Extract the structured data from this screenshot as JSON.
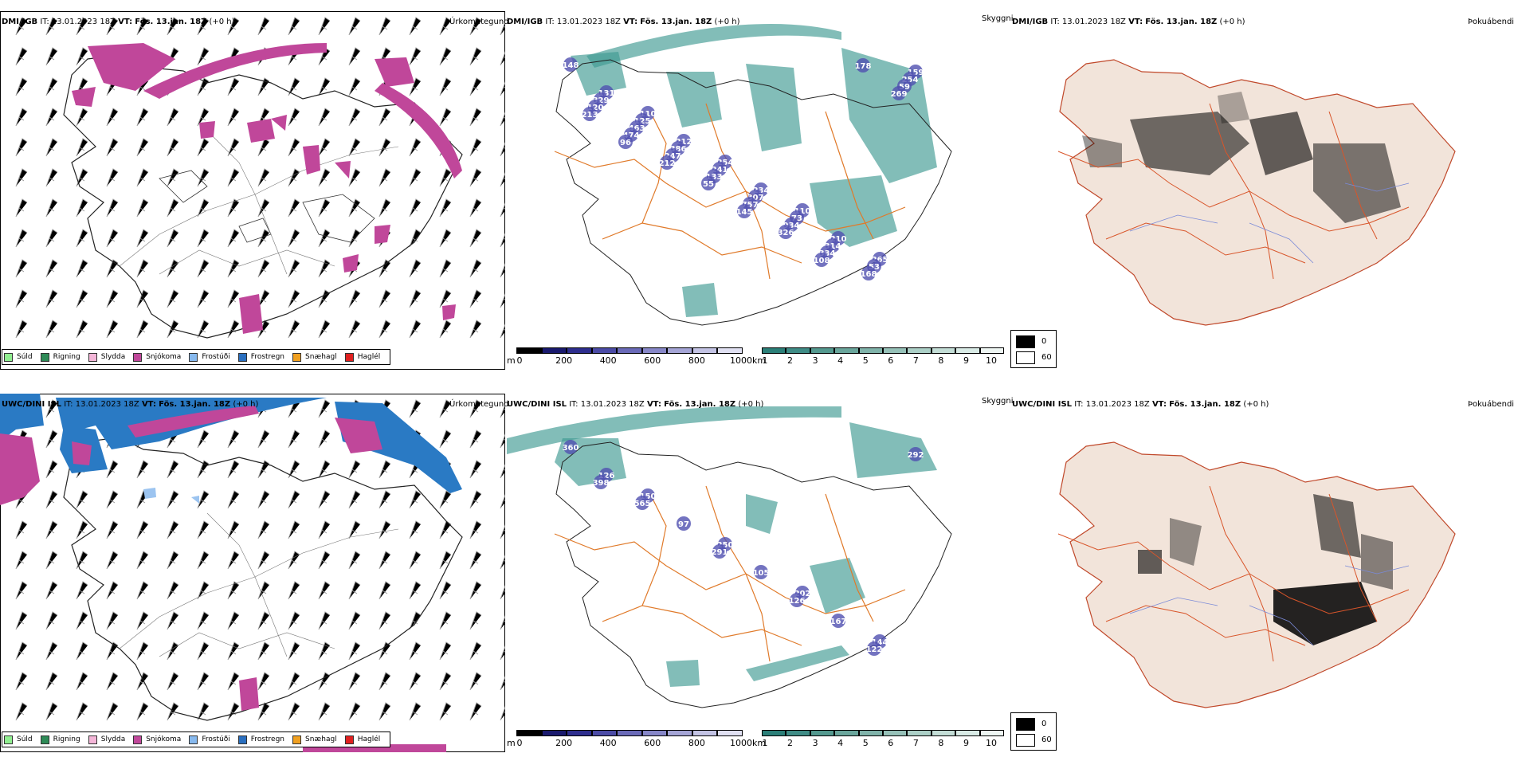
{
  "rows": [
    {
      "model": "DMI/IGB",
      "it_label": "IT:",
      "it_value": "13.01.2023 18Z",
      "vt_label": "VT:",
      "vt_value": "Fös. 13.jan. 18Z",
      "offset": "(+0 h)",
      "cloud_values": [
        "148",
        "110",
        "254",
        "110",
        "265",
        "131",
        "212",
        "234",
        "210",
        "159",
        "125",
        "241",
        "73",
        "53",
        "329",
        "386",
        "307",
        "314",
        "254",
        "463",
        "133",
        "934",
        "168",
        "120",
        "247",
        "757",
        "334",
        "59",
        "474",
        "55",
        "326",
        "178",
        "213",
        "212",
        "145",
        "108",
        "269",
        "96"
      ]
    },
    {
      "model": "UWC/DINI ISL",
      "it_label": "IT:",
      "it_value": "13.01.2023 18Z",
      "vt_label": "VT:",
      "vt_value": "Fös. 13.jan. 18Z",
      "offset": "(+0 h)",
      "cloud_values": [
        "360",
        "150",
        "250",
        "202",
        "144",
        "126",
        "97",
        "105",
        "167",
        "292",
        "565",
        "291",
        "126",
        "122",
        "398"
      ]
    }
  ],
  "panels": {
    "precip_title": "Úrkomutegund",
    "vis_title": "Skyggni",
    "fog_title": "Þokuábendi"
  },
  "precip_legend": [
    {
      "label": "Súld",
      "color": "#90ee90"
    },
    {
      "label": "Rigning",
      "color": "#2e8b57"
    },
    {
      "label": "Slydda",
      "color": "#f4b6d8"
    },
    {
      "label": "Snjókoma",
      "color": "#c0479a"
    },
    {
      "label": "Frostúði",
      "color": "#87b9ee"
    },
    {
      "label": "Frostregn",
      "color": "#2a6fbf"
    },
    {
      "label": "Snæhagl",
      "color": "#f0a020"
    },
    {
      "label": "Haglél",
      "color": "#e02020"
    }
  ],
  "cloud_bar": {
    "unit": "m",
    "ticks": [
      "0",
      "200",
      "400",
      "600",
      "800",
      "1000"
    ],
    "colors": [
      "#000000",
      "#1a1a6e",
      "#2e2e8e",
      "#4b4ba6",
      "#6a6ab8",
      "#8787c8",
      "#a5a5d6",
      "#c3c3e4",
      "#e0e0f2"
    ]
  },
  "vis_bar": {
    "unit": "km",
    "ticks": [
      "1",
      "2",
      "3",
      "4",
      "5",
      "6",
      "7",
      "8",
      "9",
      "10"
    ],
    "colors": [
      "#2b7f78",
      "#3f8c86",
      "#54998f",
      "#6aa69c",
      "#80b3aa",
      "#96c1b8",
      "#acd0c7",
      "#c3ddd6",
      "#d9ebe6",
      "#eef6f3"
    ]
  },
  "fog_legend": {
    "high": "0",
    "low": "60",
    "high_color": "#000000",
    "low_color": "#ffffff"
  },
  "colors": {
    "snow": "#c0479a",
    "freezing_rain": "#2a7ac4",
    "cloud_teal": "#3f9a92",
    "low_cloud": "#5050b0",
    "road": "#e07a2a",
    "land_fog": "#f2e4da"
  }
}
